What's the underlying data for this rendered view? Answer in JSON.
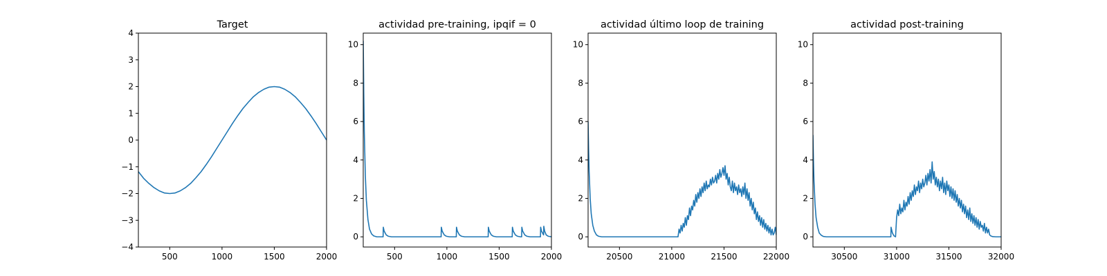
{
  "figure": {
    "accent_color": "#1f77b4"
  },
  "chart_data": [
    {
      "type": "line",
      "title": "Target",
      "xlabel": "",
      "ylabel": "",
      "xlim": [
        200,
        2000
      ],
      "ylim": [
        -4,
        4
      ],
      "xticks": [
        500,
        1000,
        1500,
        2000
      ],
      "yticks": [
        -4,
        -3,
        -2,
        -1,
        0,
        1,
        2,
        3,
        4
      ],
      "grid": false,
      "series": [
        {
          "color": "#1f77b4",
          "x": [
            200,
            250,
            300,
            350,
            400,
            450,
            500,
            550,
            600,
            650,
            700,
            750,
            800,
            850,
            900,
            950,
            1000,
            1050,
            1100,
            1150,
            1200,
            1250,
            1300,
            1350,
            1400,
            1450,
            1500,
            1550,
            1600,
            1650,
            1700,
            1750,
            1800,
            1850,
            1900,
            1950,
            2000
          ],
          "y": [
            -1.18,
            -1.43,
            -1.62,
            -1.78,
            -1.9,
            -1.98,
            -2.0,
            -1.98,
            -1.9,
            -1.78,
            -1.62,
            -1.41,
            -1.18,
            -0.91,
            -0.62,
            -0.31,
            0.0,
            0.31,
            0.62,
            0.91,
            1.18,
            1.41,
            1.62,
            1.78,
            1.9,
            1.98,
            2.0,
            1.98,
            1.9,
            1.78,
            1.62,
            1.41,
            1.18,
            0.91,
            0.62,
            0.31,
            0.0
          ]
        }
      ]
    },
    {
      "type": "line",
      "title": "actividad pre-training, ipqif = 0",
      "xlabel": "",
      "ylabel": "",
      "xlim": [
        200,
        2000
      ],
      "ylim": [
        -0.53,
        10.6
      ],
      "xticks": [
        500,
        1000,
        1500,
        2000
      ],
      "yticks": [
        0,
        2,
        4,
        6,
        8,
        10
      ],
      "grid": false,
      "series": [
        {
          "color": "#1f77b4",
          "x": [
            200,
            205,
            210,
            220,
            230,
            245,
            260,
            280,
            300,
            330,
            390,
            392,
            400,
            420,
            440,
            470,
            945,
            947,
            955,
            975,
            995,
            1025,
            1090,
            1092,
            1100,
            1120,
            1140,
            1170,
            1395,
            1397,
            1405,
            1425,
            1445,
            1475,
            1625,
            1627,
            1635,
            1655,
            1675,
            1705,
            1715,
            1717,
            1725,
            1745,
            1765,
            1795,
            1895,
            1897,
            1905,
            1920,
            1925,
            1927,
            1935,
            1950,
            1970,
            2000
          ],
          "y": [
            10.2,
            7.5,
            5.5,
            3.2,
            1.9,
            0.9,
            0.4,
            0.15,
            0.05,
            0.0,
            0.0,
            0.5,
            0.3,
            0.1,
            0.03,
            0.0,
            0.0,
            0.5,
            0.3,
            0.1,
            0.03,
            0.0,
            0.0,
            0.5,
            0.3,
            0.1,
            0.03,
            0.0,
            0.0,
            0.5,
            0.3,
            0.1,
            0.03,
            0.0,
            0.0,
            0.5,
            0.3,
            0.1,
            0.03,
            0.0,
            0.0,
            0.5,
            0.3,
            0.1,
            0.03,
            0.0,
            0.0,
            0.5,
            0.3,
            0.15,
            0.1,
            0.55,
            0.3,
            0.1,
            0.03,
            0.0
          ]
        }
      ]
    },
    {
      "type": "line",
      "title": "actividad último loop de training",
      "xlabel": "",
      "ylabel": "",
      "xlim": [
        20200,
        22000
      ],
      "ylim": [
        -0.53,
        10.6
      ],
      "xticks": [
        20500,
        21000,
        21500,
        22000
      ],
      "yticks": [
        0,
        2,
        4,
        6,
        8,
        10
      ],
      "grid": false,
      "series": [
        {
          "color": "#1f77b4",
          "x": [
            20200,
            20205,
            20210,
            20220,
            20230,
            20245,
            20260,
            20280,
            20300,
            20330,
            21060,
            21070,
            21080,
            21090,
            21100,
            21110,
            21120,
            21130,
            21140,
            21150,
            21160,
            21170,
            21180,
            21190,
            21200,
            21210,
            21220,
            21230,
            21240,
            21250,
            21260,
            21270,
            21280,
            21290,
            21300,
            21310,
            21320,
            21330,
            21340,
            21350,
            21360,
            21370,
            21380,
            21390,
            21400,
            21410,
            21420,
            21430,
            21440,
            21450,
            21460,
            21470,
            21480,
            21490,
            21500,
            21510,
            21520,
            21530,
            21540,
            21550,
            21560,
            21570,
            21580,
            21590,
            21600,
            21610,
            21620,
            21630,
            21640,
            21650,
            21660,
            21670,
            21680,
            21690,
            21700,
            21710,
            21720,
            21730,
            21740,
            21750,
            21760,
            21770,
            21780,
            21790,
            21800,
            21810,
            21820,
            21830,
            21840,
            21850,
            21860,
            21870,
            21880,
            21890,
            21900,
            21910,
            21920,
            21930,
            21940,
            21950,
            21960,
            21970,
            21980,
            21990,
            22000
          ],
          "y": [
            6.0,
            4.5,
            3.4,
            2.0,
            1.2,
            0.6,
            0.3,
            0.1,
            0.03,
            0.0,
            0.0,
            0.4,
            0.2,
            0.6,
            0.3,
            0.7,
            0.5,
            1.0,
            0.6,
            1.1,
            0.9,
            1.5,
            1.1,
            1.6,
            1.4,
            1.9,
            1.6,
            2.2,
            1.8,
            2.3,
            2.0,
            2.5,
            2.1,
            2.6,
            2.3,
            2.8,
            2.4,
            2.9,
            2.5,
            2.7,
            2.6,
            3.0,
            2.7,
            3.1,
            2.8,
            2.9,
            3.2,
            2.8,
            3.3,
            3.0,
            3.5,
            3.1,
            3.3,
            3.6,
            3.2,
            3.7,
            3.0,
            3.3,
            2.7,
            3.1,
            2.6,
            2.4,
            2.9,
            2.3,
            2.8,
            2.4,
            2.6,
            2.2,
            2.7,
            2.3,
            2.5,
            2.1,
            2.6,
            2.2,
            2.8,
            2.0,
            2.5,
            1.9,
            2.3,
            1.6,
            2.0,
            1.4,
            1.8,
            1.2,
            1.5,
            0.9,
            1.3,
            0.8,
            1.1,
            0.6,
            1.0,
            0.5,
            0.9,
            0.4,
            0.7,
            0.3,
            0.6,
            0.2,
            0.5,
            0.1,
            0.4,
            0.1,
            0.2,
            0.5,
            0.1
          ]
        }
      ]
    },
    {
      "type": "line",
      "title": "actividad post-training",
      "xlabel": "",
      "ylabel": "",
      "xlim": [
        30200,
        32000
      ],
      "ylim": [
        -0.53,
        10.6
      ],
      "xticks": [
        30500,
        31000,
        31500,
        32000
      ],
      "yticks": [
        0,
        2,
        4,
        6,
        8,
        10
      ],
      "grid": false,
      "series": [
        {
          "color": "#1f77b4",
          "x": [
            30200,
            30205,
            30210,
            30220,
            30230,
            30245,
            30260,
            30280,
            30300,
            30330,
            30945,
            30947,
            30960,
            30975,
            30990,
            31000,
            31010,
            31020,
            31030,
            31040,
            31050,
            31060,
            31070,
            31080,
            31090,
            31100,
            31110,
            31120,
            31130,
            31140,
            31150,
            31160,
            31170,
            31180,
            31190,
            31200,
            31210,
            31220,
            31230,
            31240,
            31250,
            31260,
            31270,
            31280,
            31290,
            31300,
            31310,
            31320,
            31330,
            31340,
            31350,
            31360,
            31370,
            31380,
            31390,
            31400,
            31410,
            31420,
            31430,
            31440,
            31450,
            31460,
            31470,
            31480,
            31490,
            31500,
            31510,
            31520,
            31530,
            31540,
            31550,
            31560,
            31570,
            31580,
            31590,
            31600,
            31610,
            31620,
            31630,
            31640,
            31650,
            31660,
            31670,
            31680,
            31690,
            31700,
            31710,
            31720,
            31730,
            31740,
            31750,
            31760,
            31770,
            31780,
            31790,
            31800,
            31810,
            31820,
            31830,
            31840,
            31850,
            31860,
            31870,
            31880,
            31890,
            31900,
            31920,
            31950,
            32000
          ],
          "y": [
            5.3,
            3.9,
            2.9,
            1.7,
            1.0,
            0.5,
            0.2,
            0.08,
            0.02,
            0.0,
            0.0,
            0.5,
            0.2,
            0.05,
            0.0,
            1.0,
            1.4,
            1.1,
            1.7,
            1.2,
            1.5,
            1.3,
            1.9,
            1.4,
            1.8,
            1.6,
            2.1,
            1.7,
            2.3,
            1.9,
            2.4,
            2.1,
            2.7,
            2.2,
            2.6,
            2.4,
            2.9,
            2.3,
            2.8,
            2.5,
            3.0,
            2.6,
            2.8,
            3.2,
            2.7,
            3.3,
            2.9,
            3.5,
            2.8,
            3.9,
            3.0,
            3.4,
            2.7,
            3.1,
            2.6,
            3.0,
            2.4,
            2.9,
            2.5,
            3.1,
            2.3,
            2.8,
            2.2,
            2.9,
            2.4,
            2.7,
            2.1,
            2.6,
            2.0,
            2.5,
            1.9,
            2.4,
            1.8,
            2.2,
            1.6,
            2.0,
            1.5,
            1.9,
            1.3,
            1.7,
            1.2,
            1.6,
            1.0,
            1.4,
            0.9,
            1.5,
            0.8,
            1.2,
            0.7,
            1.1,
            0.6,
            1.0,
            0.5,
            0.9,
            0.4,
            0.8,
            0.5,
            0.6,
            0.3,
            0.7,
            0.2,
            0.5,
            0.2,
            0.4,
            0.1,
            0.05,
            0.01,
            0.0,
            0.0
          ]
        }
      ]
    }
  ]
}
